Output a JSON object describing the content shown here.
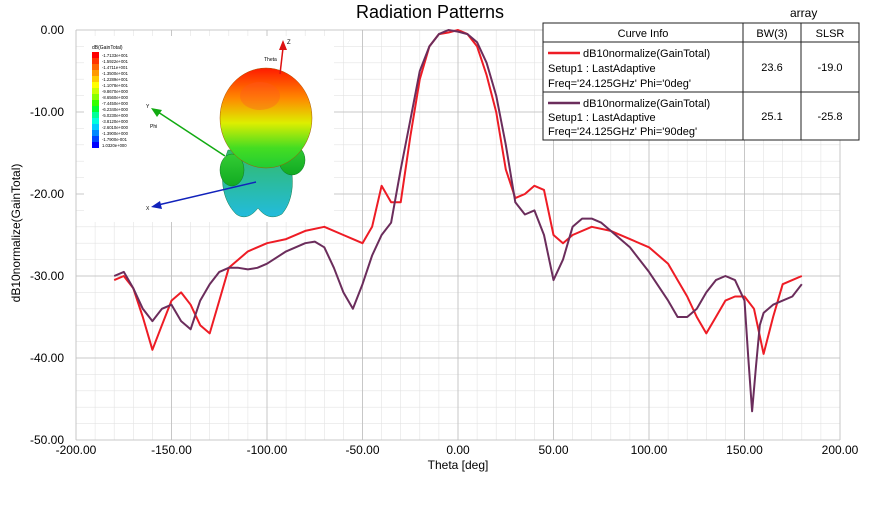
{
  "chart_data": {
    "type": "line",
    "title": "Radiation Patterns",
    "subtitle": "array",
    "xlabel": "Theta [deg]",
    "ylabel": "dB10normalize(GainTotal)",
    "xlim": [
      -200,
      200
    ],
    "ylim": [
      -50,
      0
    ],
    "x_ticks": [
      -200,
      -150,
      -100,
      -50,
      0,
      50,
      100,
      150,
      200
    ],
    "x_tick_labels": [
      "-200.00",
      "-150.00",
      "-100.00",
      "-50.00",
      "0.00",
      "50.00",
      "100.00",
      "150.00",
      "200.00"
    ],
    "y_ticks": [
      0,
      -10,
      -20,
      -30,
      -40,
      -50
    ],
    "y_tick_labels": [
      "0.00",
      "-10.00",
      "-20.00",
      "-30.00",
      "-40.00",
      "-50.00"
    ],
    "grid": true,
    "legend_position": "top-right",
    "legend_headers": [
      "Curve Info",
      "BW(3)",
      "SLSR"
    ],
    "series": [
      {
        "name": "dB10normalize(GainTotal)",
        "setup": "Setup1 : LastAdaptive",
        "condition": "Freq='24.125GHz' Phi='0deg'",
        "bw3": "23.6",
        "slsr": "-19.0",
        "color": "#ee1c25",
        "x": [
          -180,
          -175,
          -170,
          -165,
          -160,
          -155,
          -150,
          -145,
          -140,
          -135,
          -130,
          -125,
          -120,
          -115,
          -110,
          -105,
          -100,
          -90,
          -80,
          -70,
          -60,
          -55,
          -50,
          -45,
          -40,
          -35,
          -30,
          -25,
          -20,
          -15,
          -10,
          -5,
          0,
          5,
          10,
          15,
          20,
          25,
          30,
          35,
          40,
          45,
          50,
          55,
          60,
          70,
          80,
          90,
          100,
          110,
          115,
          120,
          125,
          130,
          135,
          140,
          145,
          150,
          155,
          160,
          165,
          170,
          175,
          180
        ],
        "y": [
          -30.5,
          -30,
          -31.5,
          -35,
          -39,
          -36,
          -33,
          -32,
          -33.5,
          -36,
          -37,
          -33,
          -29,
          -28,
          -27,
          -26.5,
          -26,
          -25.5,
          -24.5,
          -24,
          -25,
          -25.5,
          -26,
          -24,
          -19,
          -21,
          -21,
          -13,
          -6,
          -2,
          -0.5,
          -0.3,
          0,
          -0.5,
          -2,
          -5.5,
          -10,
          -17,
          -20.5,
          -20,
          -19,
          -19.5,
          -25,
          -26,
          -25,
          -24,
          -24.5,
          -25.5,
          -26.5,
          -28.5,
          -30.5,
          -32.5,
          -35,
          -37,
          -35,
          -33,
          -32.5,
          -32.5,
          -34,
          -39.5,
          -35,
          -31,
          -30.5,
          -30
        ]
      },
      {
        "name": "dB10normalize(GainTotal)",
        "setup": "Setup1 : LastAdaptive",
        "condition": "Freq='24.125GHz' Phi='90deg'",
        "bw3": "25.1",
        "slsr": "-25.8",
        "color": "#6b2d5c",
        "x": [
          -180,
          -175,
          -170,
          -165,
          -160,
          -155,
          -150,
          -145,
          -140,
          -135,
          -130,
          -125,
          -120,
          -115,
          -110,
          -105,
          -100,
          -90,
          -80,
          -75,
          -70,
          -65,
          -60,
          -55,
          -50,
          -45,
          -40,
          -35,
          -30,
          -25,
          -20,
          -15,
          -10,
          -5,
          0,
          5,
          10,
          15,
          20,
          25,
          30,
          35,
          40,
          45,
          50,
          55,
          60,
          65,
          70,
          75,
          80,
          90,
          100,
          110,
          115,
          120,
          125,
          130,
          135,
          140,
          145,
          150,
          152,
          154,
          156,
          158,
          160,
          165,
          170,
          175,
          180
        ],
        "y": [
          -30,
          -29.5,
          -31.5,
          -34,
          -35.5,
          -34,
          -33.5,
          -35.5,
          -36.5,
          -33,
          -31,
          -29.5,
          -29,
          -29,
          -29.2,
          -29,
          -28.5,
          -27,
          -26,
          -25.8,
          -26.5,
          -29,
          -32,
          -34,
          -31,
          -27.5,
          -25,
          -23.5,
          -17,
          -11,
          -5,
          -2,
          -0.5,
          0,
          -0.2,
          -0.5,
          -1.5,
          -4,
          -8,
          -14,
          -21,
          -22.5,
          -22,
          -25,
          -30.5,
          -28,
          -24,
          -23,
          -23,
          -23.5,
          -24.5,
          -26.5,
          -29.5,
          -33,
          -35,
          -35,
          -34,
          -32,
          -30.5,
          -30,
          -30.5,
          -33,
          -40,
          -46.5,
          -41,
          -36,
          -34.5,
          -33.5,
          -33,
          -32.5,
          -31
        ]
      }
    ]
  },
  "inset": {
    "scale_title": "dB(GainTotal)",
    "scale_values": [
      "-1.7133e+001",
      "-1.5922e+001",
      "-1.4711e+001",
      "-1.3500e+001",
      "-1.2289e+001",
      "-1.1078e+001",
      "-9.8670e+000",
      "-8.6560e+000",
      "-7.4450e+000",
      "-6.2340e+000",
      "-5.0230e+000",
      "-3.8120e+000",
      "-2.6010e+000",
      "-1.3900e+000",
      "-1.7900e-001",
      "1.0320e+000"
    ],
    "scale_colors": [
      "#ff0000",
      "#ff3300",
      "#ff6600",
      "#ff9900",
      "#ffcc00",
      "#ffff00",
      "#ccff00",
      "#88ff00",
      "#33ff00",
      "#00ff33",
      "#00ff99",
      "#00ffdd",
      "#00ccff",
      "#0088ff",
      "#0044ff",
      "#0000ff"
    ],
    "axis_labels": {
      "z": "Z",
      "theta": "Theta",
      "y": "Y",
      "phi": "Phi",
      "x": "X"
    }
  }
}
